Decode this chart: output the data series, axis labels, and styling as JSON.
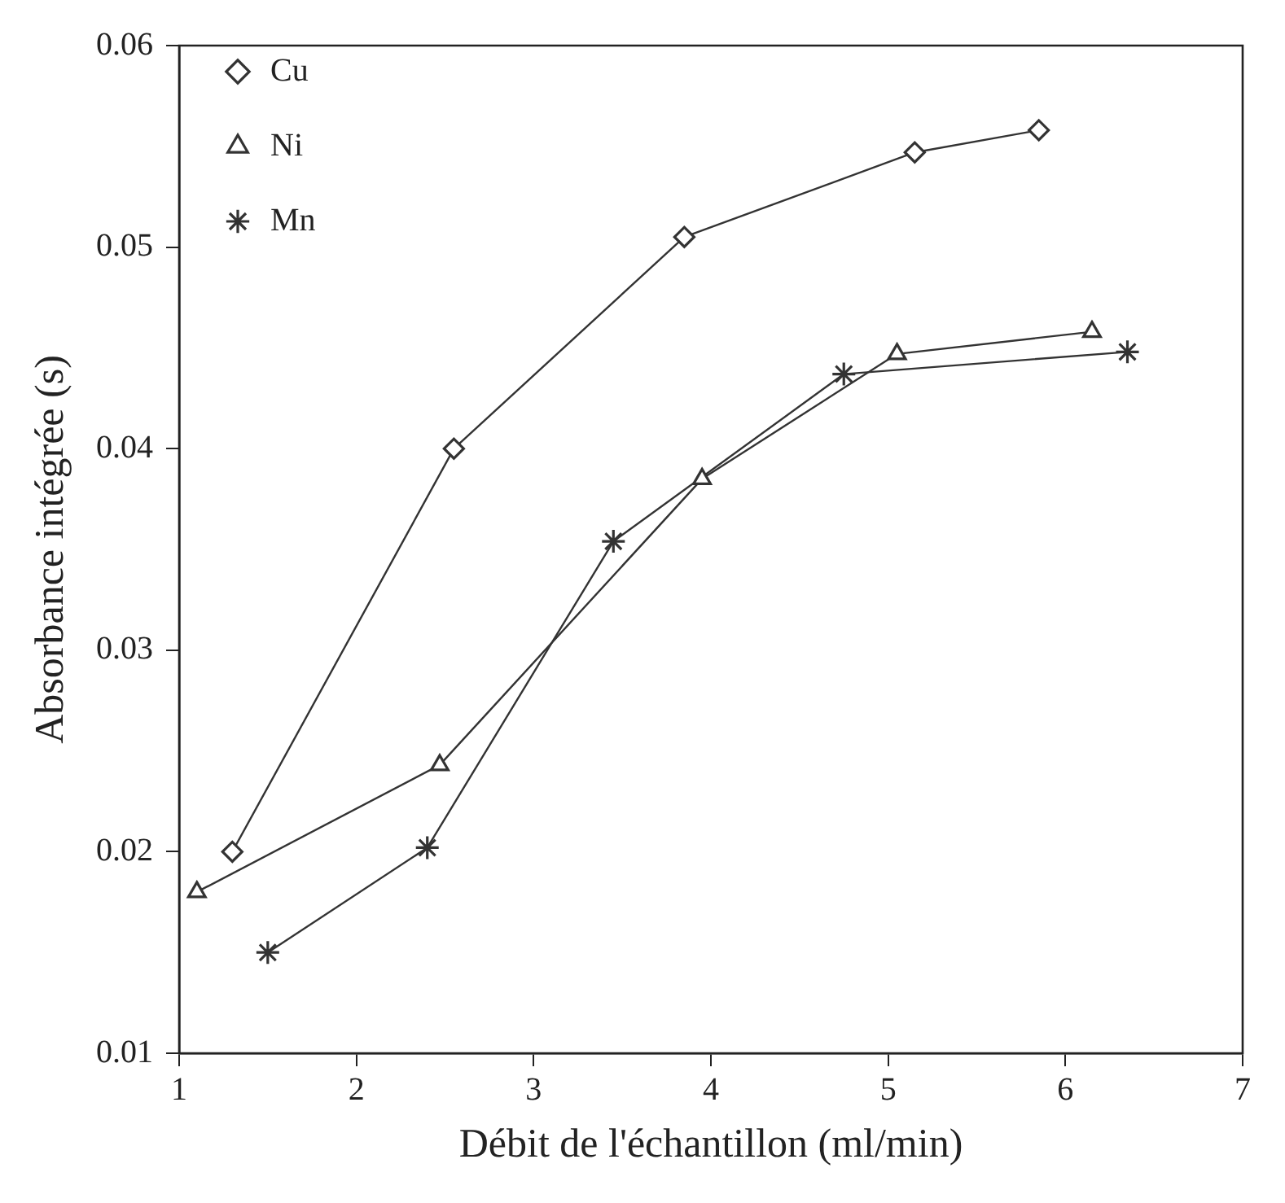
{
  "chart_data": {
    "type": "line",
    "xlabel": "Débit de l'échantillon (ml/min)",
    "ylabel": "Absorbance intégrée (s)",
    "xlim": [
      1,
      7
    ],
    "xticks": [
      1,
      2,
      3,
      4,
      5,
      6,
      7
    ],
    "ylim": [
      0.01,
      0.06
    ],
    "yticks": [
      0.01,
      0.02,
      0.03,
      0.04,
      0.05,
      0.06
    ],
    "grid": false,
    "legend": "top left",
    "line_style": "solid",
    "series": [
      {
        "name": "Cu",
        "color": "#333333",
        "marker": "diamond",
        "x": [
          1.3,
          2.55,
          3.85,
          5.15,
          5.85
        ],
        "values": [
          0.02,
          0.04,
          0.0505,
          0.0547,
          0.0558
        ]
      },
      {
        "name": "Ni",
        "color": "#333333",
        "marker": "triangle",
        "x": [
          1.1,
          2.47,
          3.95,
          5.05,
          6.15
        ],
        "values": [
          0.018,
          0.0243,
          0.0385,
          0.0447,
          0.0458
        ]
      },
      {
        "name": "Mn",
        "color": "#333333",
        "marker": "cross",
        "x": [
          1.5,
          2.4,
          3.45,
          4.75,
          6.35
        ],
        "values": [
          0.015,
          0.0202,
          0.0354,
          0.0437,
          0.0448
        ]
      }
    ]
  }
}
